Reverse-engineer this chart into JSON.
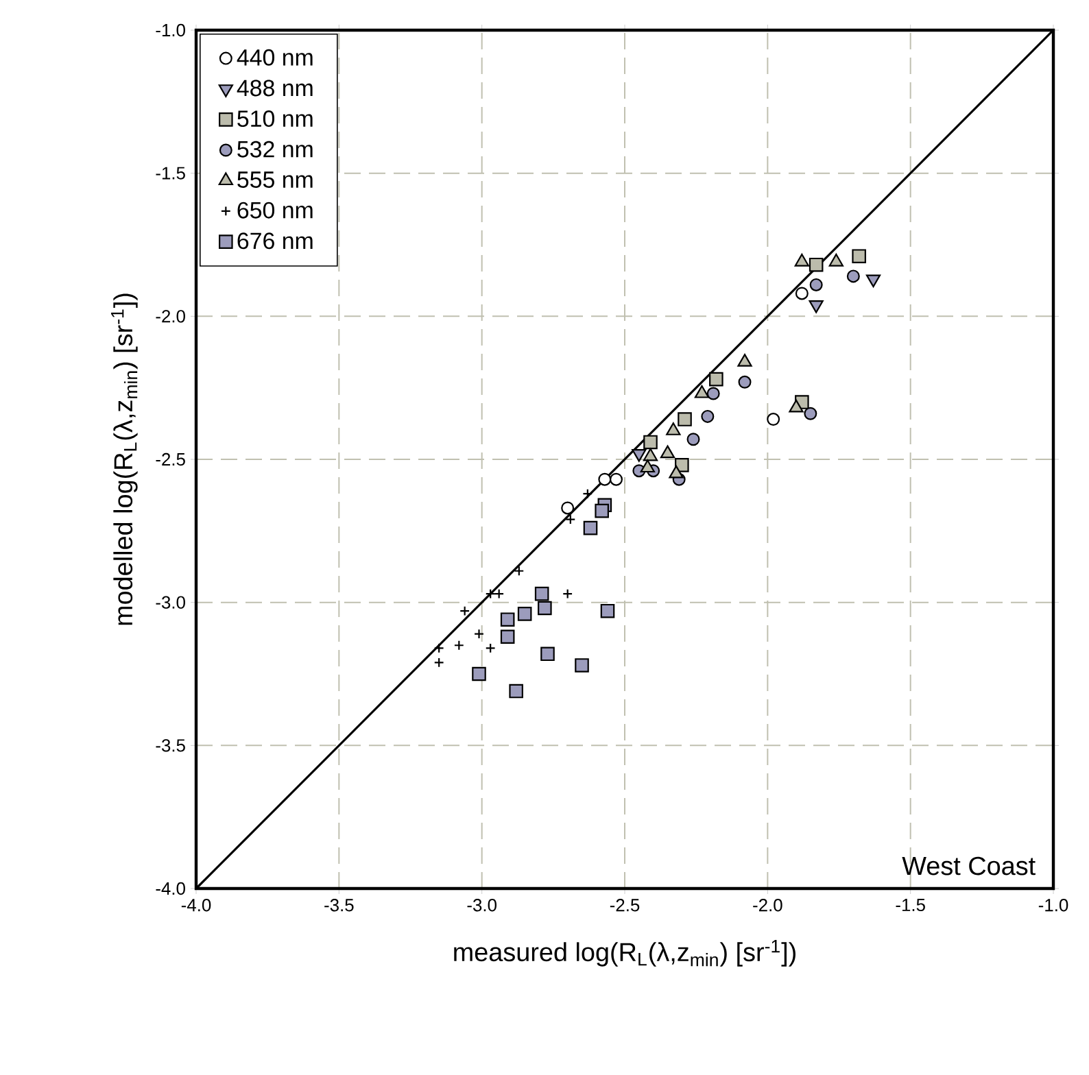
{
  "chart_data": {
    "type": "scatter",
    "xlabel": "measured log(R$_{L}$(λ,z$_{min}$) [sr$^{-1}$])",
    "ylabel": "modelled log(R$_{L}$(λ,z$_{min}$) [sr$^{-1}$])",
    "xlim": [
      -4.0,
      -1.0
    ],
    "ylim": [
      -4.0,
      -1.0
    ],
    "xticks": [
      {
        "value": -4.0,
        "label": "-4.0"
      },
      {
        "value": -3.5,
        "label": "-3.5"
      },
      {
        "value": -3.0,
        "label": "-3.0"
      },
      {
        "value": -2.5,
        "label": "-2.5"
      },
      {
        "value": -2.0,
        "label": "-2.0"
      },
      {
        "value": -1.5,
        "label": "-1.5"
      },
      {
        "value": -1.0,
        "label": "-1.0"
      }
    ],
    "yticks": [
      {
        "value": -4.0,
        "label": "-4.0"
      },
      {
        "value": -3.5,
        "label": "-3.5"
      },
      {
        "value": -3.0,
        "label": "-3.0"
      },
      {
        "value": -2.5,
        "label": "-2.5"
      },
      {
        "value": -2.0,
        "label": "-2.0"
      },
      {
        "value": -1.5,
        "label": "-1.5"
      },
      {
        "value": -1.0,
        "label": "-1.0"
      }
    ],
    "grid": true,
    "legend": "top left",
    "annotations": [
      "West Coast"
    ],
    "series": [
      {
        "name": "440 nm",
        "color": "#ffffff",
        "marker": "circle",
        "x": [
          -2.7,
          -2.57,
          -2.53,
          -1.98,
          -1.88
        ],
        "values": [
          -2.67,
          -2.57,
          -2.57,
          -2.36,
          -1.92
        ]
      },
      {
        "name": "488 nm",
        "color": "#9c9cbc",
        "marker": "triangle-down",
        "x": [
          -1.83,
          -1.63,
          -2.45
        ],
        "values": [
          -1.96,
          -1.87,
          -2.48
        ]
      },
      {
        "name": "510 nm",
        "color": "#bcbcac",
        "marker": "square",
        "x": [
          -1.68,
          -1.83,
          -1.88,
          -2.18,
          -2.29,
          -2.41,
          -2.3
        ],
        "values": [
          -1.79,
          -1.82,
          -2.3,
          -2.22,
          -2.36,
          -2.44,
          -2.52
        ]
      },
      {
        "name": "532 nm",
        "color": "#9c9cbc",
        "marker": "circle",
        "x": [
          -1.83,
          -1.7,
          -1.85,
          -2.08,
          -2.19,
          -2.21,
          -2.26,
          -2.31,
          -2.4,
          -2.45
        ],
        "values": [
          -1.89,
          -1.86,
          -2.34,
          -2.23,
          -2.27,
          -2.35,
          -2.43,
          -2.57,
          -2.54,
          -2.54
        ]
      },
      {
        "name": "555 nm",
        "color": "#bcbcac",
        "marker": "triangle",
        "x": [
          -1.88,
          -1.76,
          -2.08,
          -1.9,
          -2.23,
          -2.33,
          -2.41,
          -2.42,
          -2.32,
          -2.35
        ],
        "values": [
          -1.81,
          -1.81,
          -2.16,
          -2.32,
          -2.27,
          -2.4,
          -2.49,
          -2.53,
          -2.55,
          -2.48
        ]
      },
      {
        "name": "650 nm",
        "color": "#000000",
        "marker": "cross",
        "x": [
          -3.15,
          -3.15,
          -3.08,
          -3.01,
          -2.97,
          -3.06,
          -2.97,
          -2.94,
          -2.87,
          -2.7,
          -2.69,
          -2.63
        ],
        "values": [
          -3.16,
          -3.21,
          -3.15,
          -3.11,
          -3.16,
          -3.03,
          -2.97,
          -2.97,
          -2.89,
          -2.97,
          -2.71,
          -2.62
        ]
      },
      {
        "name": "676 nm",
        "color": "#9c9cbc",
        "marker": "square",
        "x": [
          -2.57,
          -2.58,
          -2.62,
          -2.79,
          -2.78,
          -2.85,
          -2.91,
          -2.91,
          -2.56,
          -2.77,
          -2.65,
          -3.01,
          -2.88
        ],
        "values": [
          -2.66,
          -2.68,
          -2.74,
          -2.97,
          -3.02,
          -3.04,
          -3.06,
          -3.12,
          -3.03,
          -3.18,
          -3.22,
          -3.25,
          -3.31
        ]
      },
      {
        "type": "line",
        "color": "#000000",
        "x": [
          -4.0,
          -1.0
        ],
        "values": [
          -4.0,
          -1.0
        ]
      }
    ]
  }
}
